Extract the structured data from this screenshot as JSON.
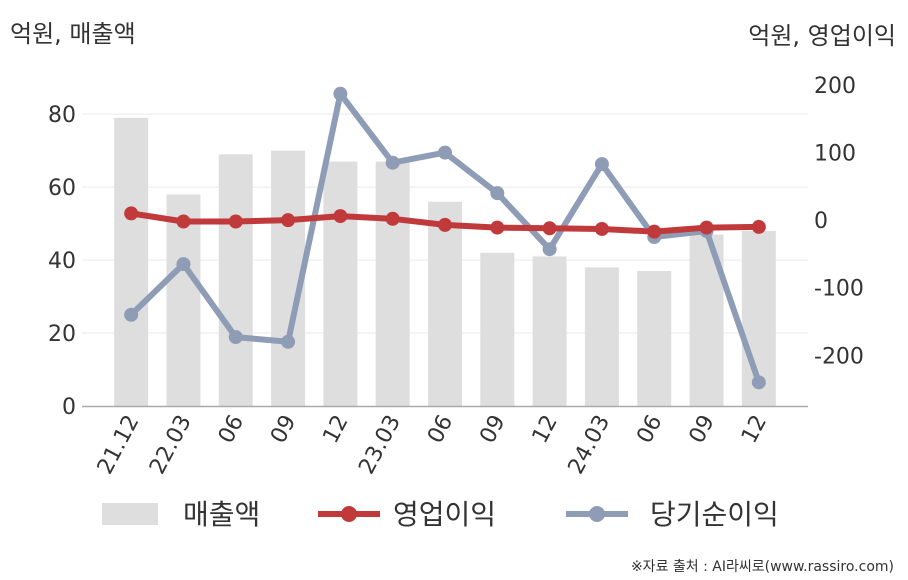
{
  "unit_left": "억원, 매출액",
  "unit_right": "억원, 영업이익",
  "source": "※자료 출처 : AI라씨로(www.rassiro.com)",
  "colors": {
    "revenue": "#dedede",
    "operating": "#c0393b",
    "net": "#8f9cb6"
  },
  "chart_data": {
    "type": "bar+line",
    "categories": [
      "21.12",
      "22.03",
      "06",
      "09",
      "12",
      "23.03",
      "06",
      "09",
      "12",
      "24.03",
      "06",
      "09",
      "12"
    ],
    "left_axis": {
      "ticks": [
        0,
        20,
        40,
        60,
        80
      ],
      "range": [
        0,
        88
      ]
    },
    "right_axis": {
      "ticks": [
        -200,
        -100,
        0,
        100,
        200
      ],
      "range": [
        -275,
        200
      ]
    },
    "series": [
      {
        "name": "매출액",
        "type": "bar",
        "axis": "left",
        "values": [
          79,
          58,
          69,
          70,
          67,
          67,
          56,
          42,
          41,
          38,
          37,
          47,
          48
        ]
      },
      {
        "name": "영업이익",
        "type": "line",
        "axis": "right",
        "values": [
          10,
          -2,
          -2,
          0,
          6,
          2,
          -7,
          -11,
          -12,
          -13,
          -17,
          -11,
          -10
        ]
      },
      {
        "name": "당기순이익",
        "type": "line",
        "axis": "right",
        "values": [
          -140,
          -65,
          -173,
          -180,
          187,
          85,
          100,
          40,
          -43,
          83,
          -25,
          -16,
          -240
        ]
      }
    ],
    "legend_position": "bottom",
    "grid": true
  }
}
